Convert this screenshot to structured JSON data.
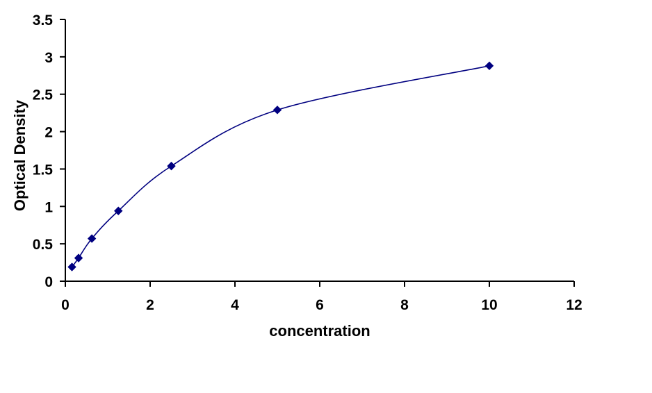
{
  "chart_data": {
    "type": "scatter",
    "title": "",
    "xlabel": "concentration",
    "ylabel": "Optical Density",
    "xlim": [
      0,
      12
    ],
    "ylim": [
      0,
      3.5
    ],
    "x_ticks": [
      "0",
      "2",
      "4",
      "6",
      "8",
      "10",
      "12"
    ],
    "y_ticks": [
      "0",
      "0.5",
      "1",
      "1.5",
      "2",
      "2.5",
      "3",
      "3.5"
    ],
    "grid": false,
    "legend": "none",
    "line": "smooth",
    "marker": "diamond",
    "color": "#000080",
    "series": [
      {
        "x": [
          0.156,
          0.312,
          0.625,
          1.25,
          2.5,
          5,
          10
        ],
        "y": [
          0.19,
          0.31,
          0.57,
          0.94,
          1.54,
          2.29,
          2.88
        ]
      }
    ]
  }
}
